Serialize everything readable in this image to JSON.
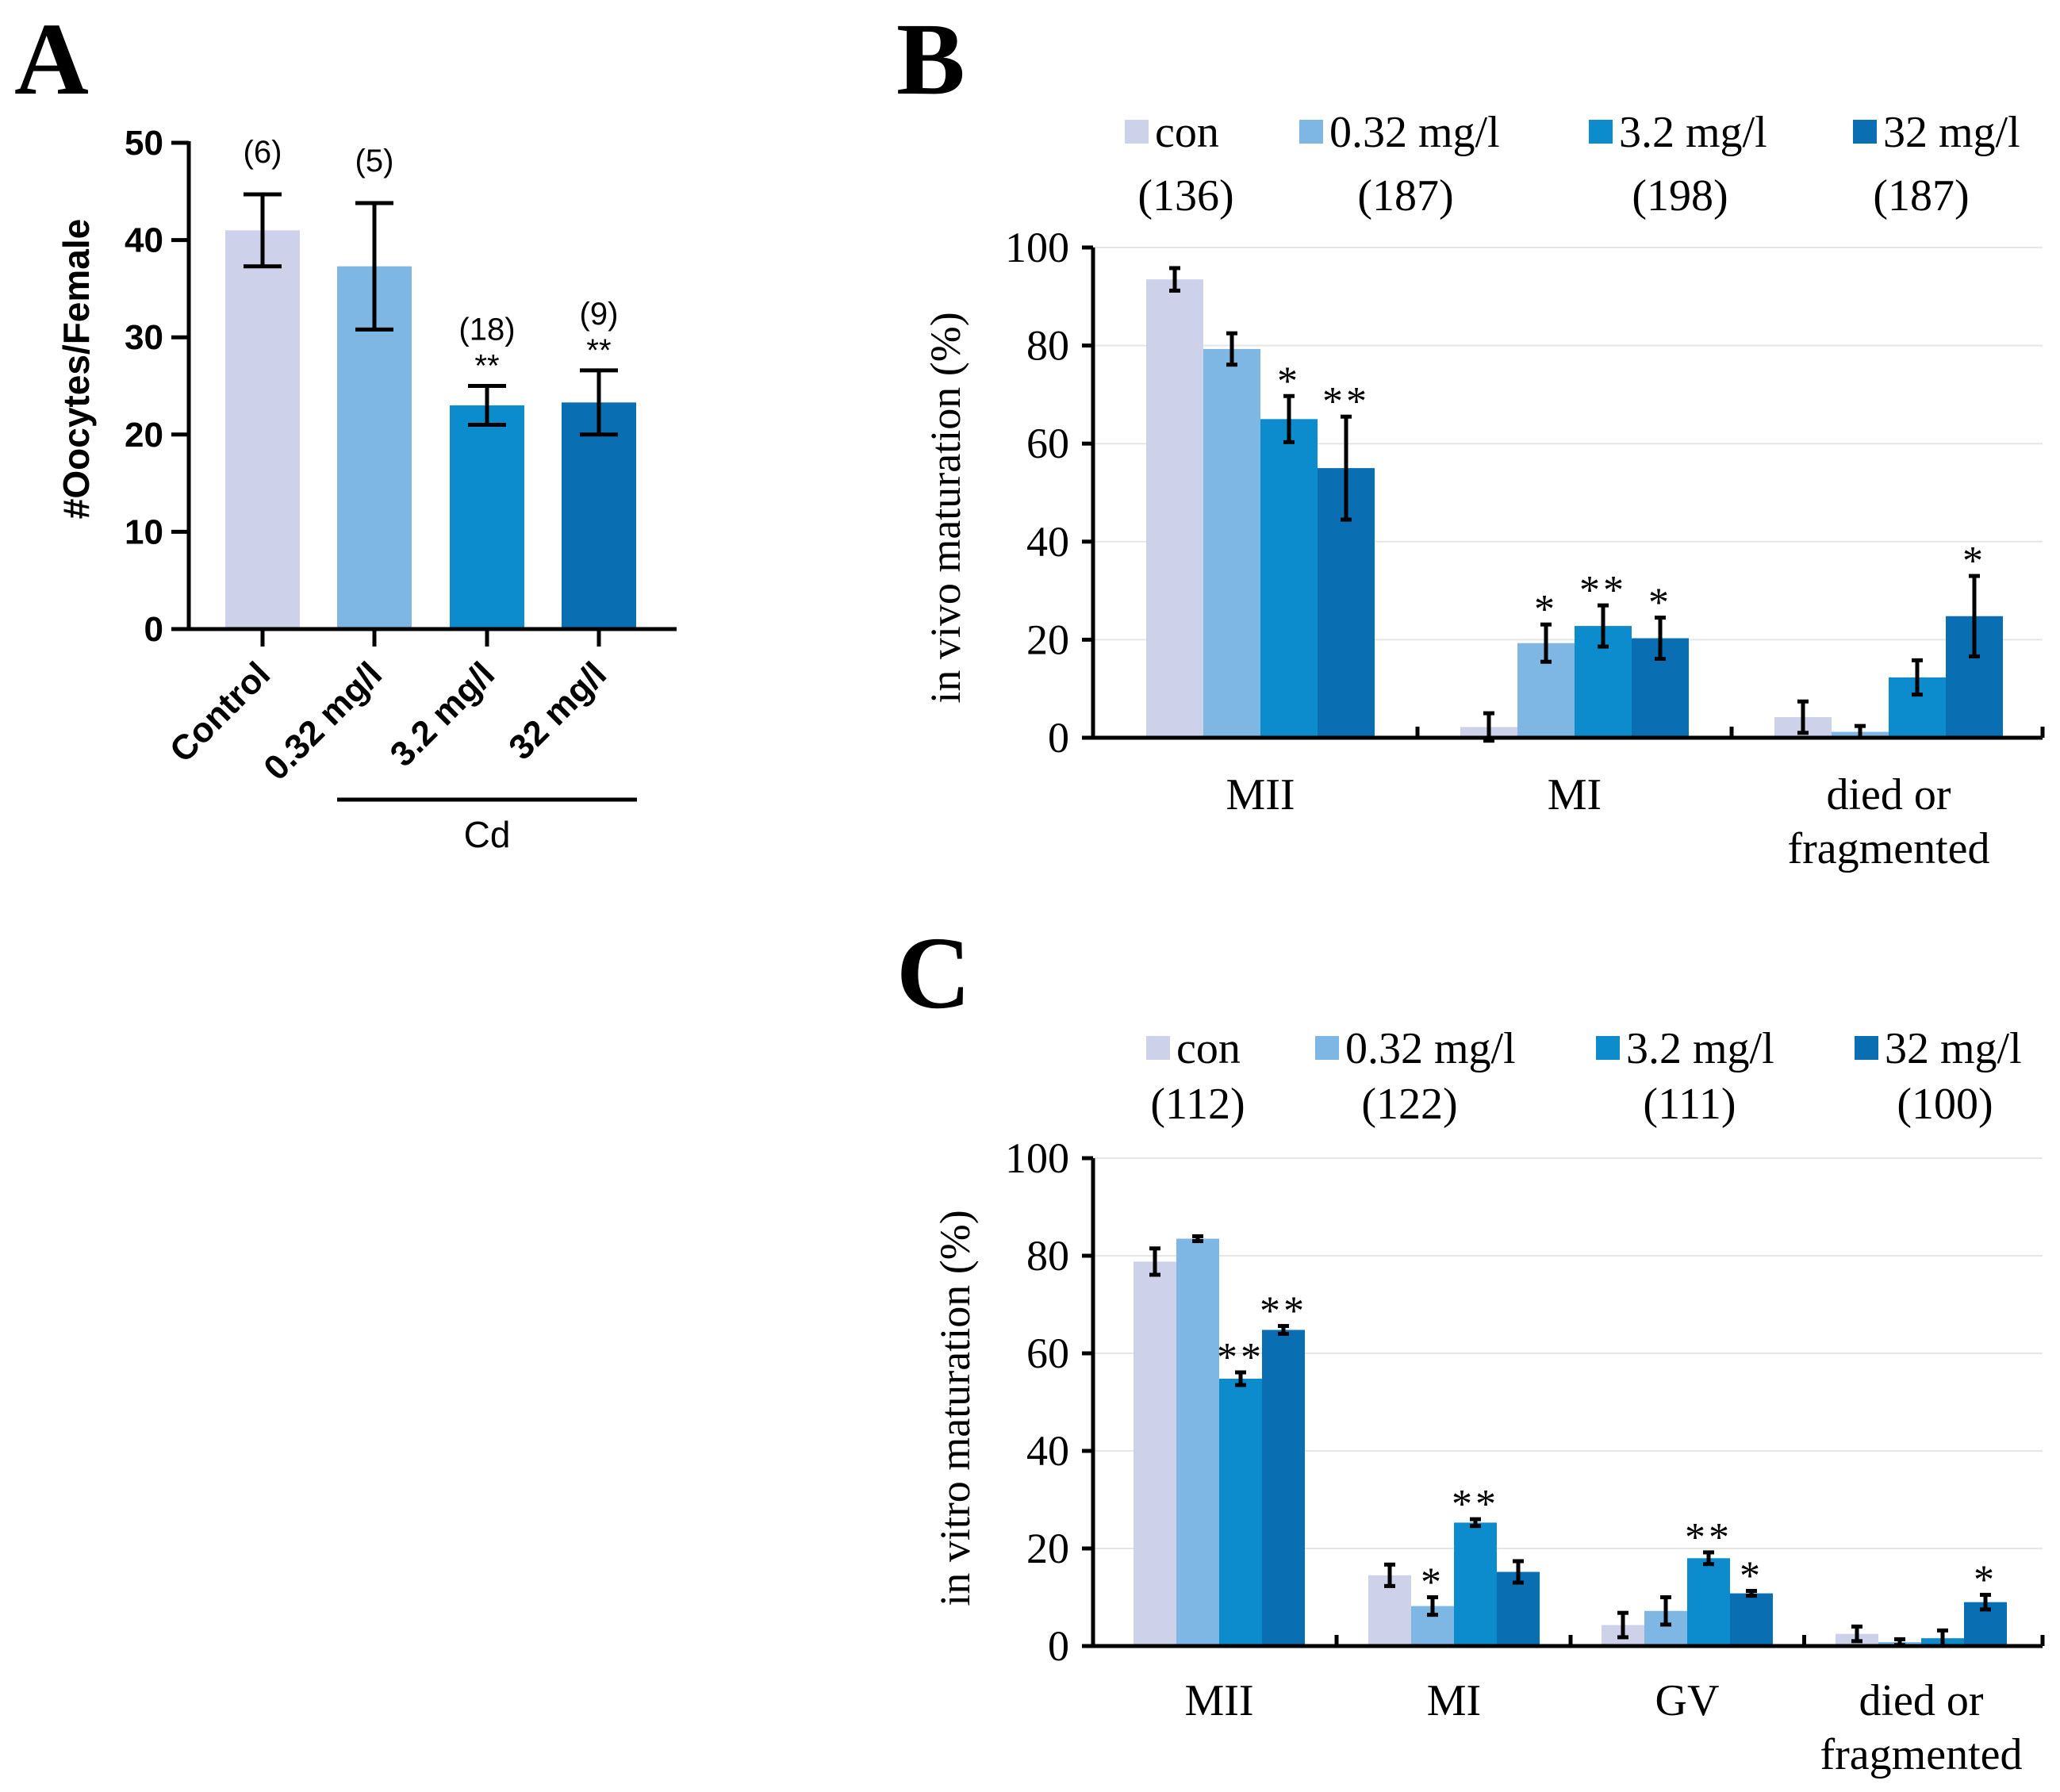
{
  "colors": {
    "con": "#cdd1ea",
    "c032": "#7eb7e3",
    "c32": "#0d8ccd",
    "c320": "#0a6eb2",
    "axis": "#000000",
    "grid": "#e6e6e6"
  },
  "chart_data": [
    {
      "panel": "A",
      "type": "bar",
      "panel_label": "A",
      "ylabel": "#Oocytes/Female",
      "ylim": [
        0,
        50
      ],
      "yticks": [
        "0",
        "10",
        "20",
        "30",
        "40",
        "50"
      ],
      "categories": [
        "Control",
        "0.32 mg/l",
        "3.2 mg/l",
        "32 mg/l"
      ],
      "values": [
        41,
        37.3,
        23,
        23.3
      ],
      "errors": [
        3.7,
        6.5,
        2,
        3.3
      ],
      "n_labels": [
        "(6)",
        "(5)",
        "(18)",
        "(9)"
      ],
      "significance": [
        "",
        "",
        "**",
        "**"
      ],
      "group_label": "Cd"
    },
    {
      "panel": "B",
      "type": "bar",
      "panel_label": "B",
      "ylabel": "in vivo maturation (%)",
      "ylim": [
        0,
        100
      ],
      "yticks": [
        "0",
        "20",
        "40",
        "60",
        "80",
        "100"
      ],
      "legend": [
        {
          "name": "con",
          "n": "(136)",
          "color_key": "con"
        },
        {
          "name": "0.32 mg/l",
          "n": "(187)",
          "color_key": "c032"
        },
        {
          "name": "3.2 mg/l",
          "n": "(198)",
          "color_key": "c32"
        },
        {
          "name": "32 mg/l",
          "n": "(187)",
          "color_key": "c320"
        }
      ],
      "categories": [
        "MII",
        "MI",
        "died or|fragmented"
      ],
      "series": [
        {
          "name": "con",
          "values": [
            93.5,
            2.2,
            4.2
          ],
          "errors": [
            2.3,
            2.8,
            3.2
          ],
          "sig": [
            "",
            "",
            ""
          ]
        },
        {
          "name": "0.32 mg/l",
          "values": [
            79.3,
            19.3,
            1.2
          ],
          "errors": [
            3.2,
            3.8,
            1.2
          ],
          "sig": [
            "",
            "*",
            ""
          ]
        },
        {
          "name": "3.2 mg/l",
          "values": [
            65,
            22.8,
            12.3
          ],
          "errors": [
            4.7,
            4.2,
            3.5
          ],
          "sig": [
            "*",
            "**",
            ""
          ]
        },
        {
          "name": "32 mg/l",
          "values": [
            55,
            20.3,
            24.8
          ],
          "errors": [
            10.5,
            4.2,
            8.2
          ],
          "sig": [
            "**",
            "*",
            "*"
          ]
        }
      ]
    },
    {
      "panel": "C",
      "type": "bar",
      "panel_label": "C",
      "ylabel": "in vitro maturation (%)",
      "ylim": [
        0,
        100
      ],
      "yticks": [
        "0",
        "20",
        "40",
        "60",
        "80",
        "100"
      ],
      "legend": [
        {
          "name": "con",
          "n": "(112)",
          "color_key": "con"
        },
        {
          "name": "0.32 mg/l",
          "n": "(122)",
          "color_key": "c032"
        },
        {
          "name": "3.2 mg/l",
          "n": "(111)",
          "color_key": "c32"
        },
        {
          "name": "32 mg/l",
          "n": "(100)",
          "color_key": "c320"
        }
      ],
      "categories": [
        "MII",
        "MI",
        "GV",
        "died or|fragmented"
      ],
      "series": [
        {
          "name": "con",
          "values": [
            78.8,
            14.5,
            4.3,
            2.5
          ],
          "errors": [
            2.7,
            2.2,
            2.5,
            1.5
          ],
          "sig": [
            "",
            "",
            "",
            ""
          ]
        },
        {
          "name": "0.32 mg/l",
          "values": [
            83.5,
            8.2,
            7.2,
            0.8
          ],
          "errors": [
            0.5,
            1.8,
            2.8,
            0.6
          ],
          "sig": [
            "",
            "*",
            "",
            ""
          ]
        },
        {
          "name": "3.2 mg/l",
          "values": [
            54.8,
            25.3,
            18,
            1.6
          ],
          "errors": [
            1.3,
            0.7,
            1.2,
            1.6
          ],
          "sig": [
            "**",
            "**",
            "**",
            ""
          ]
        },
        {
          "name": "32 mg/l",
          "values": [
            64.8,
            15.2,
            10.8,
            9
          ],
          "errors": [
            0.8,
            2.2,
            0.5,
            1.5
          ],
          "sig": [
            "**",
            "",
            "*",
            "*"
          ]
        }
      ]
    }
  ]
}
